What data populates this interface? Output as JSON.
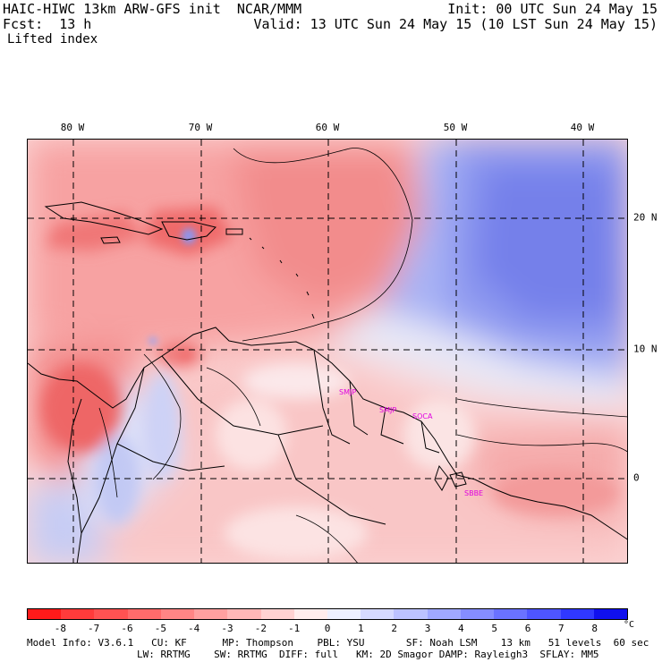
{
  "header": {
    "line1_left": "HAIC-HIWC 13km ARW-GFS init  NCAR/MMM",
    "line1_right": "Init: 00 UTC Sun 24 May 15",
    "line2_left": "Fcst:  13 h",
    "line2_right": "Valid: 13 UTC Sun 24 May 15 (10 LST Sun 24 May 15)",
    "field_name": "Lifted index"
  },
  "map": {
    "lon_labels": [
      "80 W",
      "70 W",
      "60 W",
      "50 W",
      "40 W"
    ],
    "lat_labels": [
      "20 N",
      "10 N",
      "0"
    ],
    "station_labels": [
      "SMJP",
      "SMJP",
      "SOCA",
      "SBBE"
    ]
  },
  "colorbar": {
    "labels": [
      "-8",
      "-7",
      "-6",
      "-5",
      "-4",
      "-3",
      "-2",
      "-1",
      "0",
      "1",
      "2",
      "3",
      "4",
      "5",
      "6",
      "7",
      "8"
    ],
    "unit": "°C",
    "colors": [
      "#ff1a1a",
      "#ff3b3b",
      "#ff5252",
      "#ff6b6b",
      "#ff8585",
      "#ffa0a0",
      "#ffb8b8",
      "#ffd2d2",
      "#ffeded",
      "#eef0ff",
      "#d6daff",
      "#bcc2ff",
      "#a0a8ff",
      "#858dff",
      "#6a72ff",
      "#4e55ff",
      "#3038ff",
      "#1010ee"
    ]
  },
  "model_info": {
    "line1": "Model Info: V3.6.1   CU: KF      MP: Thompson    PBL: YSU       SF: Noah LSM    13 km   51 levels  60 sec",
    "line2": "LW: RRTMG    SW: RRTMG  DIFF: full   KM: 2D Smagor DAMP: Rayleigh3  SFLAY: MM5"
  }
}
